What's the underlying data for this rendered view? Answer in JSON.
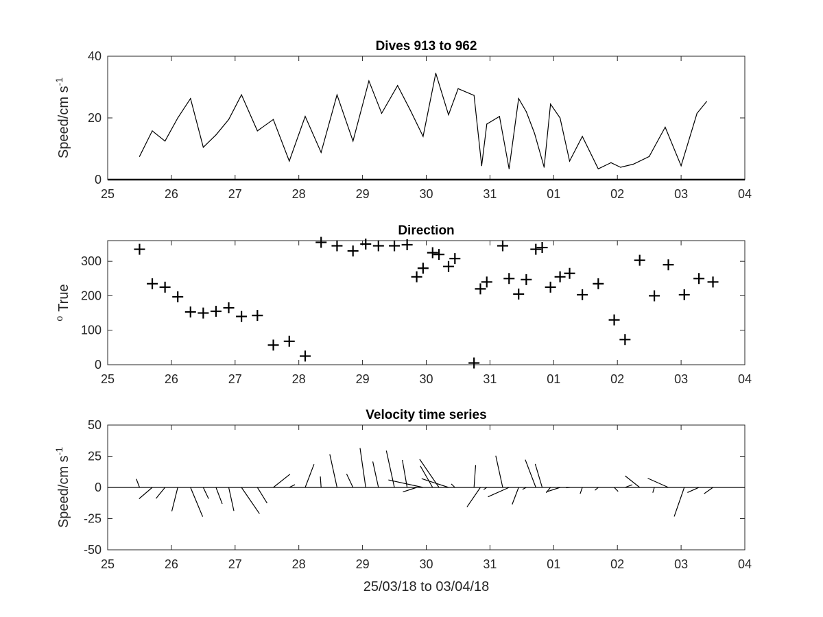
{
  "chart_data": [
    {
      "type": "line",
      "title": "Dives 913 to 962",
      "ylabel": "Speed/cm s",
      "ylabel_sup": "-1",
      "xlabel": "",
      "x_unit": "day (25 Mar 2018 to 4 Apr 2018)",
      "xlim": [
        25,
        35
      ],
      "ylim": [
        0,
        40
      ],
      "x_tick_labels": [
        "25",
        "26",
        "27",
        "28",
        "29",
        "30",
        "31",
        "01",
        "02",
        "03",
        "04"
      ],
      "y_tick_values": [
        0,
        20,
        40
      ],
      "series": [
        {
          "x": [
            25.5,
            25.7,
            25.9,
            26.1,
            26.3,
            26.5,
            26.7,
            26.9,
            27.1,
            27.35,
            27.6,
            27.85,
            28.1,
            28.35,
            28.6,
            28.85,
            29.1,
            29.3,
            29.55,
            29.75,
            29.95,
            30.15,
            30.35,
            30.5,
            30.75,
            30.87,
            30.95,
            31.15,
            31.3,
            31.45,
            31.57,
            31.7,
            31.85,
            31.95,
            32.1,
            32.25,
            32.45,
            32.7,
            32.9,
            33.05,
            33.25,
            33.5,
            33.75,
            34.0,
            34.25,
            34.4
          ],
          "y": [
            7.5,
            15.8,
            12.5,
            20,
            26.3,
            10.5,
            14.5,
            19.5,
            27.5,
            15.8,
            19.5,
            6,
            20.5,
            8.8,
            27.5,
            12.5,
            32,
            21.5,
            30.5,
            22.5,
            14,
            34.5,
            21,
            29.5,
            27.3,
            4.5,
            18,
            20.5,
            3.5,
            26.3,
            22,
            15,
            4,
            24.5,
            20,
            6,
            14,
            3.5,
            5.5,
            4,
            5,
            7.5,
            17,
            4.5,
            21.5,
            25.3
          ]
        }
      ]
    },
    {
      "type": "scatter",
      "title": "Direction",
      "ylabel": "True",
      "ylabel_sup": "o",
      "xlabel": "",
      "marker": "+",
      "xlim": [
        25,
        35
      ],
      "ylim": [
        0,
        360
      ],
      "x_tick_labels": [
        "25",
        "26",
        "27",
        "28",
        "29",
        "30",
        "31",
        "01",
        "02",
        "03",
        "04"
      ],
      "y_tick_values": [
        0,
        100,
        200,
        300
      ],
      "series": [
        {
          "x": [
            25.5,
            25.7,
            25.9,
            26.1,
            26.3,
            26.5,
            26.7,
            26.9,
            27.1,
            27.35,
            27.6,
            27.85,
            28.1,
            28.35,
            28.6,
            28.85,
            29.05,
            29.25,
            29.5,
            29.7,
            29.85,
            29.95,
            30.1,
            30.2,
            30.35,
            30.45,
            30.75,
            30.85,
            30.95,
            31.2,
            31.3,
            31.45,
            31.57,
            31.72,
            31.82,
            31.95,
            32.1,
            32.25,
            32.45,
            32.7,
            32.95,
            33.12,
            33.35,
            33.58,
            33.8,
            34.05,
            34.28,
            34.5
          ],
          "y": [
            335,
            235,
            225,
            197,
            153,
            150,
            155,
            165,
            140,
            143,
            57,
            68,
            25,
            355,
            345,
            330,
            350,
            345,
            345,
            348,
            255,
            280,
            325,
            320,
            285,
            308,
            5,
            220,
            240,
            345,
            250,
            205,
            247,
            335,
            340,
            225,
            255,
            265,
            203,
            235,
            130,
            73,
            303,
            200,
            290,
            203,
            250,
            240
          ]
        }
      ]
    },
    {
      "type": "vector-stick",
      "title": "Velocity time series",
      "ylabel": "Speed/cm s",
      "ylabel_sup": "-1",
      "xlabel": "25/03/18 to 03/04/18",
      "xlim": [
        25,
        35
      ],
      "ylim": [
        -50,
        50
      ],
      "x_tick_labels": [
        "25",
        "26",
        "27",
        "28",
        "29",
        "30",
        "31",
        "01",
        "02",
        "03",
        "04"
      ],
      "y_tick_values": [
        50,
        25,
        0,
        -25,
        -50
      ],
      "y_tick_labels": [
        "50",
        "25",
        "0",
        "-25",
        "-50"
      ],
      "stick_scale_days_per_cm_s": 0.016,
      "series": [
        {
          "x": [
            25.5,
            25.7,
            25.9,
            26.1,
            26.3,
            26.5,
            26.7,
            26.9,
            27.1,
            27.35,
            27.6,
            27.85,
            28.1,
            28.35,
            28.6,
            28.85,
            29.05,
            29.25,
            29.5,
            29.7,
            29.85,
            29.95,
            30.1,
            30.2,
            30.35,
            30.45,
            30.75,
            30.85,
            30.95,
            31.2,
            31.3,
            31.45,
            31.57,
            31.72,
            31.82,
            31.95,
            32.1,
            32.25,
            32.45,
            32.7,
            32.95,
            33.12,
            33.35,
            33.58,
            33.8,
            34.05,
            34.28,
            34.5
          ],
          "speed": [
            7.5,
            15.8,
            12.5,
            20,
            26.3,
            10.5,
            14.5,
            19.5,
            27.5,
            15.8,
            19.5,
            6,
            20.5,
            8.8,
            27.5,
            12.5,
            32,
            21.5,
            30.5,
            22.5,
            14,
            34.5,
            21,
            29.5,
            27.3,
            4.5,
            18,
            20.5,
            3.5,
            26.3,
            22,
            15,
            4,
            24.5,
            20,
            6,
            14,
            3.5,
            5.5,
            4,
            5,
            7.5,
            17,
            4.5,
            21.5,
            25.3,
            12,
            10
          ],
          "direction_deg_true": [
            335,
            235,
            225,
            197,
            153,
            150,
            155,
            165,
            140,
            143,
            57,
            68,
            25,
            355,
            345,
            330,
            350,
            345,
            345,
            348,
            255,
            280,
            325,
            320,
            285,
            308,
            5,
            220,
            240,
            345,
            250,
            205,
            247,
            335,
            340,
            225,
            255,
            265,
            203,
            235,
            130,
            73,
            303,
            200,
            290,
            203,
            250,
            240
          ]
        }
      ]
    }
  ]
}
